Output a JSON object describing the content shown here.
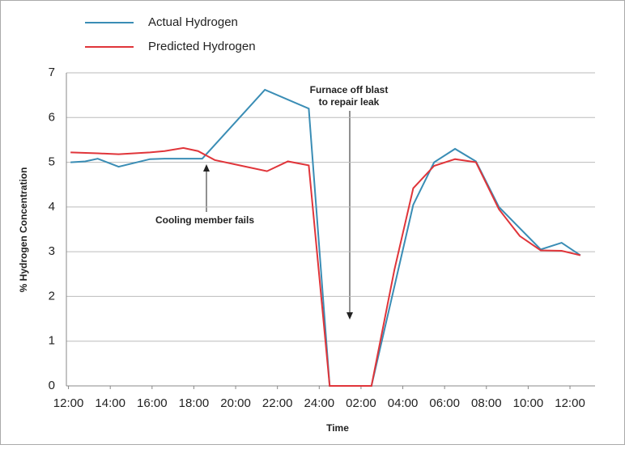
{
  "chart_data": {
    "type": "line",
    "x_label": "Time",
    "y_label": "% Hydrogen Concentration",
    "series": [
      {
        "name": "Actual Hydrogen",
        "color": "#3a8db5",
        "x": [
          0.1,
          0.8,
          1.4,
          2.4,
          3.9,
          4.6,
          6.4,
          9.4,
          11.5,
          12.5,
          14.5,
          16.5,
          17.5,
          18.5,
          19.5,
          20.6,
          22.6,
          23.6,
          24.5
        ],
        "values": [
          5.0,
          5.02,
          5.08,
          4.9,
          5.07,
          5.08,
          5.08,
          6.62,
          6.2,
          0,
          0,
          4.05,
          5.0,
          5.3,
          5.02,
          4.0,
          3.05,
          3.2,
          2.92
        ]
      },
      {
        "name": "Predicted Hydrogen",
        "color": "#e0353a",
        "x": [
          0.1,
          1.4,
          2.4,
          3.9,
          4.6,
          5.5,
          6.2,
          7.0,
          8.3,
          9.5,
          10.5,
          11.5,
          12.5,
          14.5,
          15.6,
          16.5,
          17.5,
          18.5,
          19.5,
          20.6,
          21.6,
          22.6,
          23.6,
          24.5
        ],
        "values": [
          5.22,
          5.2,
          5.18,
          5.22,
          5.25,
          5.32,
          5.25,
          5.05,
          4.92,
          4.8,
          5.02,
          4.93,
          0,
          0,
          2.6,
          4.42,
          4.92,
          5.07,
          5.0,
          3.95,
          3.35,
          3.03,
          3.02,
          2.92
        ]
      }
    ],
    "xlim": [
      -0.1,
      25.2
    ],
    "xticks": [
      {
        "value": 0,
        "label": "12:00"
      },
      {
        "value": 2,
        "label": "14:00"
      },
      {
        "value": 4,
        "label": "16:00"
      },
      {
        "value": 6,
        "label": "18:00"
      },
      {
        "value": 8,
        "label": "20:00"
      },
      {
        "value": 10,
        "label": "22:00"
      },
      {
        "value": 12,
        "label": "24:00"
      },
      {
        "value": 14,
        "label": "02:00"
      },
      {
        "value": 16,
        "label": "04:00"
      },
      {
        "value": 18,
        "label": "06:00"
      },
      {
        "value": 20,
        "label": "08:00"
      },
      {
        "value": 22,
        "label": "10:00"
      },
      {
        "value": 24,
        "label": "12:00"
      }
    ],
    "ylim": [
      0,
      7
    ],
    "yticks": [
      0,
      1,
      2,
      3,
      4,
      5,
      6,
      7
    ],
    "grid": true,
    "legend": "top-left",
    "annotations": [
      {
        "text": "Cooling member fails"
      },
      {
        "text": "Furnace off blast"
      },
      {
        "text": "to repair leak"
      }
    ]
  }
}
